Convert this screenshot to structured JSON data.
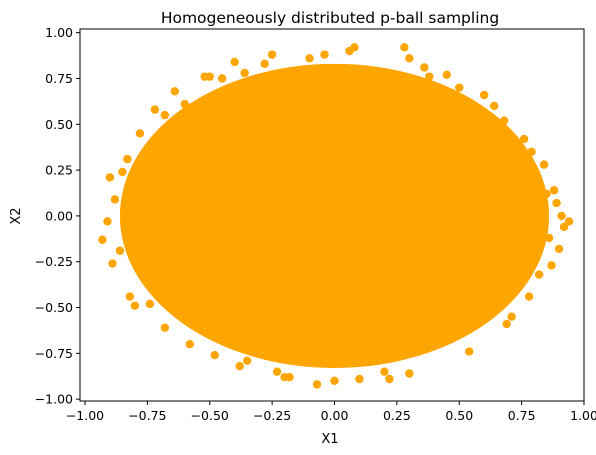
{
  "chart_data": {
    "type": "scatter",
    "title": "Homogeneously distributed p-ball sampling",
    "xlabel": "X1",
    "ylabel": "X2",
    "xlim": [
      -1.02,
      1.0
    ],
    "ylim": [
      -1.01,
      1.02
    ],
    "x_ticks": [
      -1.0,
      -0.75,
      -0.5,
      -0.25,
      0.0,
      0.25,
      0.5,
      0.75,
      1.0
    ],
    "x_tick_labels": [
      "−1.00",
      "−0.75",
      "−0.50",
      "−0.25",
      "0.00",
      "0.25",
      "0.50",
      "0.75",
      "1.00"
    ],
    "y_ticks": [
      -1.0,
      -0.75,
      -0.5,
      -0.25,
      0.0,
      0.25,
      0.5,
      0.75,
      1.0
    ],
    "y_tick_labels": [
      "−1.00",
      "−0.75",
      "−0.50",
      "−0.25",
      "0.00",
      "0.25",
      "0.50",
      "0.75",
      "1.00"
    ],
    "grid": false,
    "marker_color": "#FFA500",
    "series": [
      {
        "points": [
          [
            -0.93,
            -0.13
          ],
          [
            -0.91,
            -0.03
          ],
          [
            -0.9,
            0.21
          ],
          [
            -0.89,
            -0.26
          ],
          [
            -0.88,
            0.09
          ],
          [
            -0.86,
            -0.19
          ],
          [
            -0.85,
            0.24
          ],
          [
            -0.83,
            0.31
          ],
          [
            -0.82,
            -0.44
          ],
          [
            -0.8,
            -0.49
          ],
          [
            -0.78,
            0.45
          ],
          [
            -0.74,
            -0.48
          ],
          [
            -0.72,
            0.58
          ],
          [
            -0.68,
            0.55
          ],
          [
            -0.68,
            -0.61
          ],
          [
            -0.64,
            0.68
          ],
          [
            -0.6,
            0.61
          ],
          [
            -0.58,
            -0.7
          ],
          [
            -0.52,
            0.76
          ],
          [
            -0.5,
            0.76
          ],
          [
            -0.48,
            -0.76
          ],
          [
            -0.45,
            0.75
          ],
          [
            -0.4,
            0.84
          ],
          [
            -0.38,
            -0.82
          ],
          [
            -0.36,
            0.78
          ],
          [
            -0.35,
            -0.79
          ],
          [
            -0.28,
            0.83
          ],
          [
            -0.25,
            0.88
          ],
          [
            -0.23,
            -0.85
          ],
          [
            -0.2,
            -0.88
          ],
          [
            -0.18,
            -0.88
          ],
          [
            -0.1,
            0.86
          ],
          [
            -0.07,
            -0.92
          ],
          [
            -0.04,
            0.88
          ],
          [
            0.0,
            -0.9
          ],
          [
            0.06,
            0.9
          ],
          [
            0.08,
            0.92
          ],
          [
            0.1,
            -0.89
          ],
          [
            0.2,
            -0.85
          ],
          [
            0.22,
            -0.89
          ],
          [
            0.28,
            0.92
          ],
          [
            0.3,
            0.86
          ],
          [
            0.3,
            -0.86
          ],
          [
            0.36,
            0.81
          ],
          [
            0.38,
            0.76
          ],
          [
            0.45,
            0.77
          ],
          [
            0.5,
            0.7
          ],
          [
            0.54,
            -0.74
          ],
          [
            0.6,
            0.66
          ],
          [
            0.64,
            0.6
          ],
          [
            0.68,
            0.52
          ],
          [
            0.69,
            -0.59
          ],
          [
            0.71,
            -0.55
          ],
          [
            0.76,
            0.42
          ],
          [
            0.78,
            -0.44
          ],
          [
            0.79,
            0.35
          ],
          [
            0.82,
            -0.32
          ],
          [
            0.84,
            0.28
          ],
          [
            0.86,
            -0.12
          ],
          [
            0.87,
            -0.27
          ],
          [
            0.88,
            0.14
          ],
          [
            0.89,
            0.07
          ],
          [
            0.9,
            -0.18
          ],
          [
            0.92,
            -0.06
          ],
          [
            0.94,
            -0.03
          ],
          [
            0.91,
            0.0
          ],
          [
            0.85,
            0.12
          ]
        ]
      }
    ]
  }
}
